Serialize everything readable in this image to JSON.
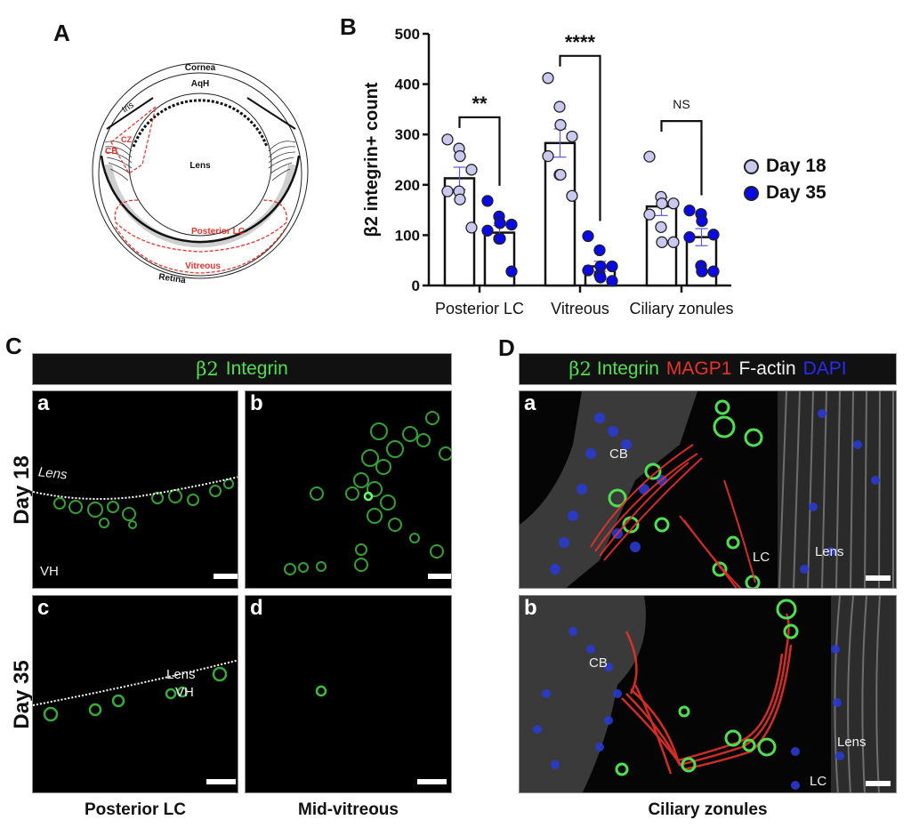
{
  "panels": {
    "A": {
      "letter": "A"
    },
    "B": {
      "letter": "B"
    },
    "C": {
      "letter": "C"
    },
    "D": {
      "letter": "D"
    }
  },
  "eye_diagram": {
    "labels": {
      "cornea": "Cornea",
      "aqh": "AqH",
      "iris": "Iris",
      "cz": "CZ",
      "cb": "CB",
      "lens": "Lens",
      "posterior_lc": "Posterior LC",
      "vitreous": "Vitreous",
      "retina": "Retina"
    },
    "colors": {
      "annotation": "#e8322a",
      "tissue": "#cfcfcf",
      "line": "#111111"
    }
  },
  "chart_data": {
    "type": "bar",
    "title": "",
    "xlabel": "",
    "ylabel": "β2 integrin+ count",
    "ylim": [
      0,
      500
    ],
    "yticks": [
      0,
      100,
      200,
      300,
      400,
      500
    ],
    "grid": false,
    "legend_position": "right",
    "categories": [
      "Posterior LC",
      "Vitreous",
      "Ciliary zonules"
    ],
    "series": [
      {
        "name": "Day 18",
        "color": "#c9c9ef",
        "values": [
          213,
          283,
          157
        ],
        "sem": [
          22,
          28,
          18
        ],
        "points": [
          [
            290,
            272,
            257,
            230,
            187,
            187,
            171,
            115
          ],
          [
            412,
            355,
            319,
            296,
            257,
            220,
            220,
            178
          ],
          [
            256,
            176,
            163,
            163,
            141,
            116,
            86,
            86
          ]
        ]
      },
      {
        "name": "Day 35",
        "color": "#0a0ae8",
        "values": [
          105,
          38,
          96
        ],
        "sem": [
          14,
          10,
          17
        ],
        "points": [
          [
            168,
            137,
            124,
            121,
            109,
            93,
            93,
            28
          ],
          [
            98,
            70,
            38,
            38,
            30,
            21,
            16,
            9
          ],
          [
            149,
            142,
            128,
            101,
            96,
            39,
            28,
            28
          ]
        ]
      }
    ],
    "annotations": [
      {
        "category": "Posterior LC",
        "text": "**"
      },
      {
        "category": "Vitreous",
        "text": "****"
      },
      {
        "category": "Ciliary zonules",
        "text": "NS"
      }
    ]
  },
  "legend": {
    "items": [
      {
        "label": "Day 18",
        "color": "#c9c9ef"
      },
      {
        "label": "Day 35",
        "color": "#0a0ae8"
      }
    ]
  },
  "panelC": {
    "header": {
      "beta": "β2",
      "marker": "Integrin",
      "color": "#4ee04e"
    },
    "rows": [
      "Day 18",
      "Day 35"
    ],
    "columns": [
      "Posterior LC",
      "Mid-vitreous"
    ],
    "subpanels": {
      "a": {
        "letter": "a",
        "lens_label": "Lens",
        "vh_label": "VH"
      },
      "b": {
        "letter": "b"
      },
      "c": {
        "letter": "c",
        "lens_label": "Lens",
        "vh_label": "VH"
      },
      "d": {
        "letter": "d"
      }
    }
  },
  "panelD": {
    "header": {
      "beta": "β2",
      "integrin": "Integrin",
      "magp1": "MAGP1",
      "factin": "F-actin",
      "dapi": "DAPI",
      "colors": {
        "integrin": "#4ee04e",
        "magp1": "#e8322a",
        "factin": "#f2f2f2",
        "dapi": "#2a2af0"
      }
    },
    "column": "Ciliary zonules",
    "subpanels": {
      "a": {
        "letter": "a",
        "cb_label": "CB",
        "lc_label": "LC",
        "lens_label": "Lens"
      },
      "b": {
        "letter": "b",
        "cb_label": "CB",
        "lc_label": "LC",
        "lens_label": "Lens"
      }
    }
  }
}
